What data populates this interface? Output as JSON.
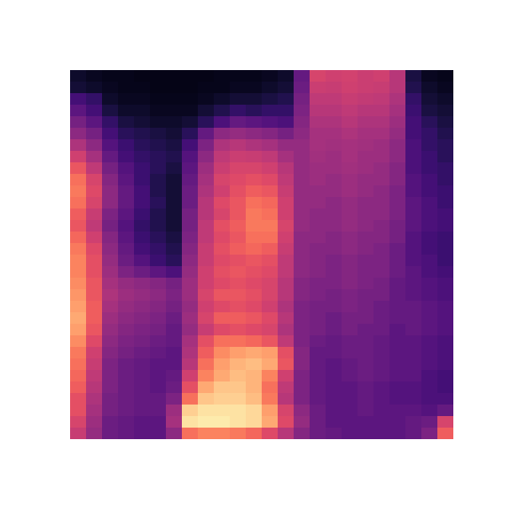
{
  "chart_data": {
    "type": "heatmap",
    "color": "magma",
    "zlim": [
      0,
      100
    ],
    "tick_labels": false,
    "cells": [
      [
        8,
        6,
        5,
        5,
        4,
        4,
        4,
        4,
        4,
        5,
        5,
        5,
        6,
        8,
        30,
        58,
        56,
        57,
        55,
        56,
        50,
        12,
        6,
        5
      ],
      [
        10,
        8,
        6,
        5,
        5,
        4,
        4,
        4,
        5,
        5,
        6,
        6,
        8,
        10,
        32,
        55,
        54,
        56,
        55,
        54,
        50,
        14,
        8,
        6
      ],
      [
        22,
        18,
        8,
        6,
        6,
        5,
        5,
        5,
        6,
        8,
        10,
        10,
        12,
        14,
        34,
        52,
        52,
        54,
        53,
        52,
        48,
        18,
        10,
        8
      ],
      [
        28,
        22,
        12,
        8,
        8,
        6,
        6,
        6,
        10,
        14,
        18,
        16,
        18,
        18,
        36,
        50,
        50,
        52,
        50,
        50,
        46,
        20,
        12,
        10
      ],
      [
        34,
        28,
        18,
        12,
        10,
        8,
        8,
        10,
        16,
        24,
        30,
        28,
        26,
        24,
        38,
        48,
        48,
        50,
        48,
        48,
        44,
        22,
        16,
        12
      ],
      [
        40,
        34,
        22,
        16,
        14,
        12,
        10,
        16,
        30,
        40,
        42,
        40,
        38,
        34,
        40,
        46,
        46,
        48,
        46,
        46,
        42,
        22,
        18,
        14
      ],
      [
        48,
        40,
        26,
        20,
        16,
        14,
        12,
        22,
        36,
        48,
        50,
        48,
        46,
        42,
        42,
        46,
        45,
        46,
        45,
        44,
        40,
        24,
        18,
        16
      ],
      [
        56,
        46,
        30,
        22,
        18,
        16,
        14,
        26,
        40,
        52,
        55,
        54,
        52,
        46,
        42,
        45,
        44,
        46,
        44,
        44,
        40,
        24,
        20,
        16
      ],
      [
        64,
        52,
        34,
        26,
        20,
        16,
        12,
        28,
        44,
        55,
        58,
        58,
        56,
        50,
        42,
        44,
        44,
        45,
        44,
        42,
        38,
        24,
        20,
        18
      ],
      [
        70,
        58,
        38,
        28,
        20,
        14,
        10,
        30,
        46,
        58,
        60,
        62,
        60,
        52,
        42,
        44,
        42,
        44,
        42,
        42,
        38,
        26,
        22,
        18
      ],
      [
        72,
        60,
        40,
        30,
        22,
        14,
        10,
        32,
        48,
        56,
        62,
        66,
        64,
        54,
        42,
        42,
        42,
        44,
        42,
        40,
        36,
        26,
        22,
        20
      ],
      [
        70,
        58,
        40,
        30,
        22,
        16,
        10,
        32,
        50,
        60,
        64,
        70,
        68,
        56,
        42,
        42,
        40,
        42,
        40,
        40,
        36,
        28,
        24,
        20
      ],
      [
        66,
        54,
        36,
        28,
        20,
        14,
        10,
        34,
        50,
        58,
        64,
        72,
        70,
        56,
        42,
        40,
        40,
        42,
        40,
        40,
        36,
        28,
        24,
        22
      ],
      [
        64,
        52,
        34,
        26,
        18,
        14,
        10,
        34,
        52,
        62,
        66,
        72,
        72,
        58,
        42,
        40,
        40,
        42,
        40,
        38,
        34,
        28,
        24,
        22
      ],
      [
        68,
        56,
        38,
        28,
        20,
        16,
        12,
        36,
        52,
        60,
        64,
        70,
        70,
        56,
        40,
        40,
        38,
        40,
        38,
        38,
        34,
        26,
        22,
        20
      ],
      [
        72,
        60,
        40,
        30,
        22,
        18,
        14,
        38,
        54,
        62,
        66,
        68,
        66,
        54,
        40,
        38,
        38,
        40,
        38,
        36,
        32,
        26,
        22,
        20
      ],
      [
        74,
        62,
        42,
        32,
        26,
        20,
        16,
        40,
        54,
        60,
        62,
        64,
        62,
        52,
        40,
        38,
        36,
        38,
        36,
        36,
        32,
        26,
        24,
        20
      ],
      [
        74,
        62,
        44,
        36,
        32,
        28,
        24,
        42,
        56,
        62,
        64,
        62,
        60,
        52,
        40,
        38,
        36,
        38,
        36,
        36,
        32,
        28,
        24,
        22
      ],
      [
        76,
        64,
        46,
        42,
        40,
        38,
        34,
        44,
        56,
        60,
        62,
        60,
        58,
        50,
        38,
        36,
        36,
        38,
        36,
        34,
        30,
        28,
        26,
        24
      ],
      [
        78,
        64,
        48,
        44,
        42,
        40,
        36,
        44,
        58,
        64,
        64,
        62,
        58,
        50,
        38,
        36,
        34,
        36,
        34,
        34,
        30,
        28,
        26,
        24
      ],
      [
        80,
        66,
        46,
        42,
        40,
        38,
        34,
        42,
        56,
        60,
        62,
        60,
        56,
        48,
        36,
        34,
        34,
        36,
        34,
        32,
        30,
        30,
        28,
        26
      ],
      [
        82,
        66,
        44,
        40,
        38,
        36,
        32,
        44,
        58,
        66,
        66,
        64,
        60,
        50,
        36,
        34,
        32,
        34,
        34,
        32,
        30,
        30,
        28,
        26
      ],
      [
        80,
        64,
        42,
        38,
        36,
        34,
        30,
        42,
        54,
        60,
        62,
        60,
        58,
        48,
        36,
        34,
        32,
        34,
        32,
        32,
        28,
        30,
        28,
        26
      ],
      [
        76,
        60,
        40,
        36,
        34,
        32,
        30,
        46,
        62,
        70,
        70,
        68,
        64,
        52,
        36,
        32,
        30,
        32,
        32,
        30,
        28,
        28,
        26,
        24
      ],
      [
        72,
        56,
        38,
        34,
        32,
        30,
        28,
        48,
        66,
        76,
        80,
        82,
        80,
        62,
        38,
        30,
        30,
        32,
        32,
        30,
        28,
        28,
        26,
        24
      ],
      [
        70,
        54,
        36,
        32,
        30,
        28,
        28,
        50,
        70,
        80,
        84,
        86,
        82,
        64,
        38,
        30,
        28,
        30,
        32,
        30,
        28,
        28,
        26,
        24
      ],
      [
        68,
        52,
        36,
        32,
        30,
        28,
        30,
        56,
        74,
        82,
        86,
        84,
        74,
        56,
        36,
        30,
        28,
        30,
        32,
        30,
        28,
        28,
        24,
        22
      ],
      [
        66,
        50,
        36,
        32,
        30,
        28,
        32,
        62,
        82,
        88,
        88,
        84,
        70,
        52,
        36,
        30,
        28,
        28,
        30,
        28,
        26,
        26,
        24,
        22
      ],
      [
        62,
        48,
        34,
        32,
        30,
        30,
        36,
        70,
        88,
        90,
        90,
        86,
        72,
        50,
        36,
        30,
        28,
        28,
        30,
        28,
        26,
        26,
        24,
        24
      ],
      [
        62,
        46,
        34,
        32,
        30,
        30,
        44,
        90,
        94,
        94,
        94,
        92,
        80,
        58,
        40,
        32,
        28,
        28,
        30,
        28,
        28,
        28,
        26,
        30
      ],
      [
        58,
        44,
        32,
        30,
        28,
        28,
        46,
        94,
        96,
        96,
        94,
        92,
        82,
        60,
        42,
        32,
        28,
        28,
        28,
        28,
        28,
        30,
        32,
        58
      ],
      [
        54,
        42,
        32,
        30,
        28,
        28,
        40,
        70,
        74,
        74,
        72,
        68,
        60,
        50,
        38,
        32,
        30,
        28,
        28,
        28,
        28,
        30,
        36,
        66
      ]
    ]
  }
}
